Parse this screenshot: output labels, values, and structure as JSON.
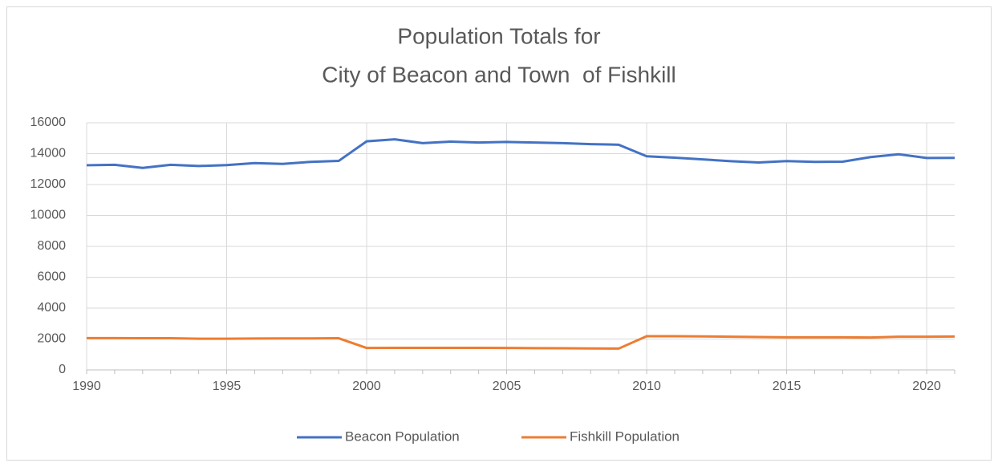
{
  "chart_data": {
    "type": "line",
    "title": [
      "Population Totals for",
      "City of Beacon and Town  of Fishkill"
    ],
    "x": [
      1990,
      1991,
      1992,
      1993,
      1994,
      1995,
      1996,
      1997,
      1998,
      1999,
      2000,
      2001,
      2002,
      2003,
      2004,
      2005,
      2006,
      2007,
      2008,
      2009,
      2010,
      2011,
      2012,
      2013,
      2014,
      2015,
      2016,
      2017,
      2018,
      2019,
      2020,
      2021
    ],
    "series": [
      {
        "name": "Beacon Population",
        "color": "#4472c4",
        "values": [
          13250,
          13280,
          13080,
          13280,
          13200,
          13260,
          13390,
          13340,
          13470,
          13530,
          14800,
          14930,
          14680,
          14780,
          14720,
          14760,
          14720,
          14680,
          14620,
          14580,
          13830,
          13740,
          13630,
          13510,
          13430,
          13520,
          13470,
          13480,
          13780,
          13960,
          13720,
          13730
        ]
      },
      {
        "name": "Fishkill Population",
        "color": "#ed7d31",
        "values": [
          2060,
          2060,
          2050,
          2050,
          2020,
          2020,
          2030,
          2040,
          2040,
          2050,
          1420,
          1430,
          1430,
          1430,
          1430,
          1420,
          1410,
          1400,
          1390,
          1380,
          2180,
          2180,
          2170,
          2150,
          2130,
          2110,
          2110,
          2110,
          2100,
          2150,
          2150,
          2160
        ]
      }
    ],
    "xlim": [
      1990,
      2021
    ],
    "xticks": [
      1990,
      1995,
      2000,
      2005,
      2010,
      2015,
      2020
    ],
    "ylim": [
      0,
      16000
    ],
    "yticks": [
      0,
      2000,
      4000,
      6000,
      8000,
      10000,
      12000,
      14000,
      16000
    ],
    "grid": true,
    "legend": "bottom"
  }
}
